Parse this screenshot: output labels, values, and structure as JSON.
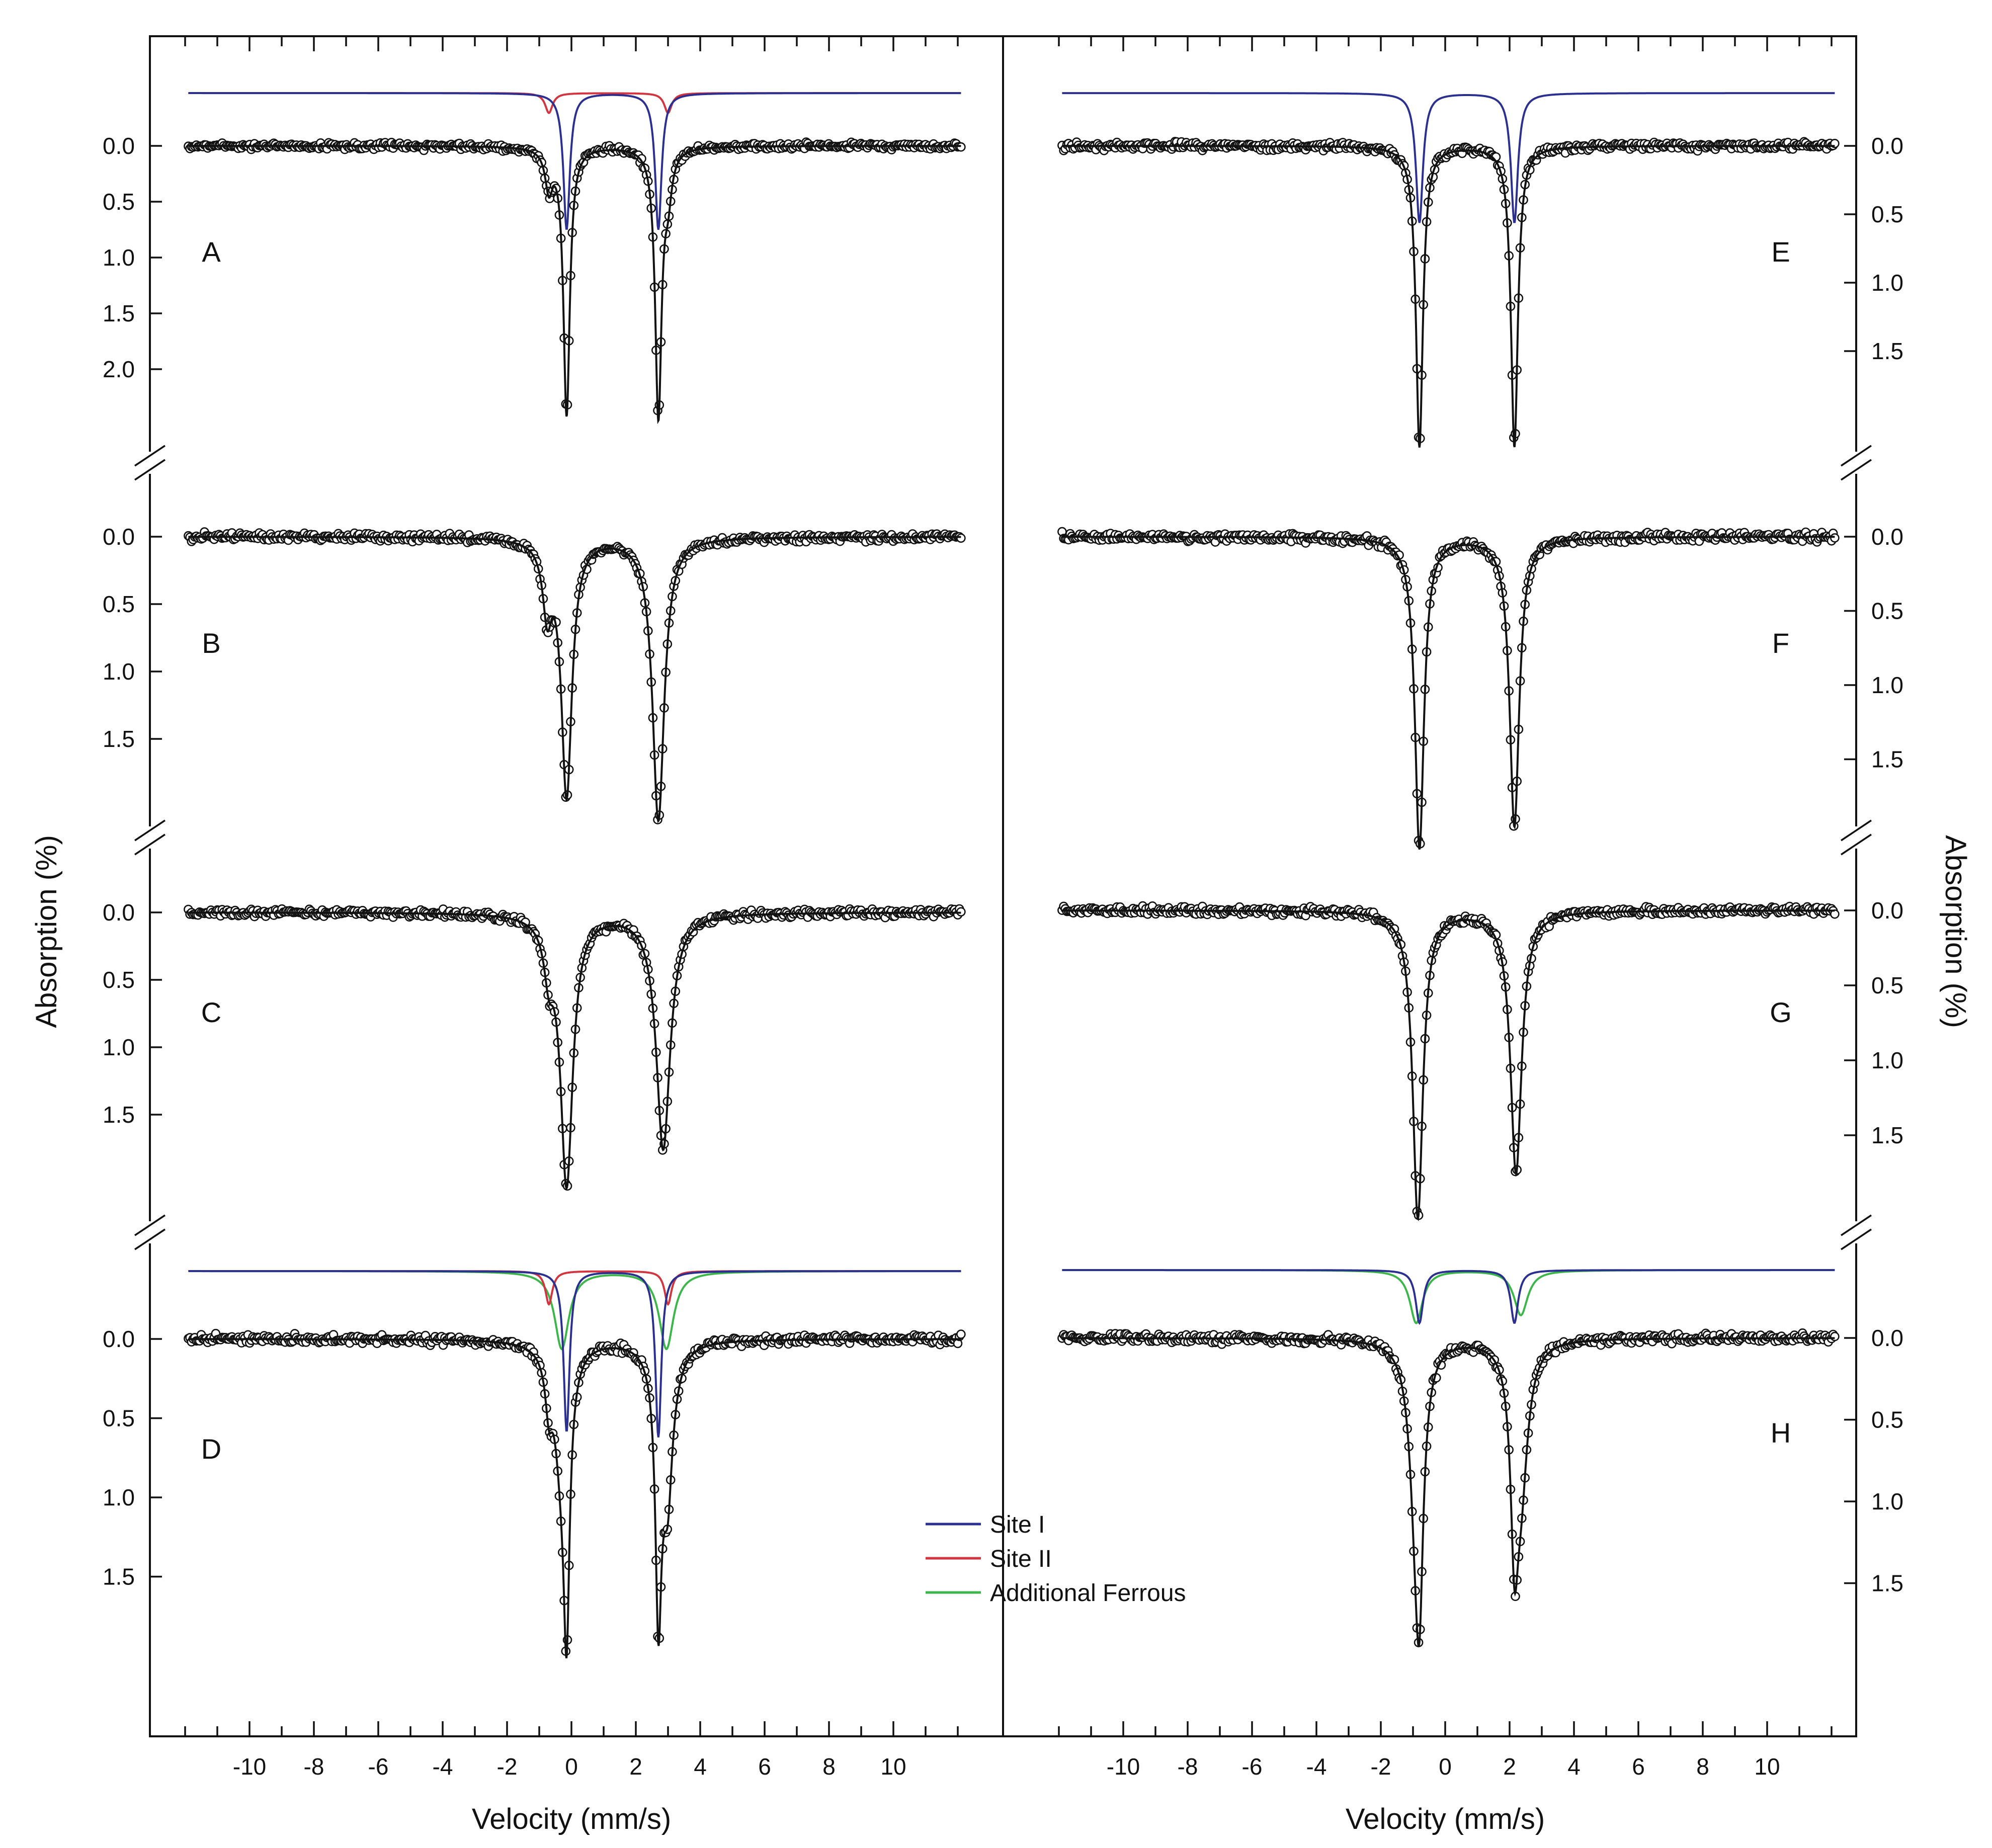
{
  "chart_data": {
    "type": "scatter",
    "xlabel": "Velocity (mm/s)",
    "ylabel": "Absorption (%)",
    "xlim": [
      -12,
      12
    ],
    "x_ticks": [
      -10,
      -8,
      -6,
      -4,
      -2,
      0,
      2,
      4,
      6,
      8,
      10
    ],
    "colors": {
      "site_I": "#2b2f8f",
      "site_II": "#d1353f",
      "additional_ferrous": "#3cb54a",
      "fit": "#111111",
      "data": "#111111"
    },
    "legend": {
      "position": "center",
      "entries": [
        {
          "label": "Site I",
          "color": "#2b2f8f"
        },
        {
          "label": "Site II",
          "color": "#d1353f"
        },
        {
          "label": "Additional Ferrous",
          "color": "#3cb54a"
        }
      ]
    },
    "panels": [
      {
        "id": "A",
        "label": "A",
        "column": "left",
        "ylim": [
          0,
          2.7
        ],
        "y_ticks": [
          "0.0",
          "0.5",
          "1.0",
          "1.5",
          "2.0"
        ],
        "components": [
          {
            "key": "site_I",
            "lines": [
              {
                "center": -0.15,
                "depth": 2.4,
                "hwhm": 0.12
              },
              {
                "center": 2.7,
                "depth": 2.4,
                "hwhm": 0.12
              }
            ]
          },
          {
            "key": "site_II",
            "lines": [
              {
                "center": -0.7,
                "depth": 0.35,
                "hwhm": 0.14
              },
              {
                "center": 3.0,
                "depth": 0.35,
                "hwhm": 0.14
              }
            ]
          }
        ]
      },
      {
        "id": "B",
        "label": "B",
        "column": "left",
        "ylim": [
          0,
          2.15
        ],
        "y_ticks": [
          "0.0",
          "0.5",
          "1.0",
          "1.5"
        ],
        "components": [
          {
            "key": "site_I",
            "lines": [
              {
                "center": -0.15,
                "depth": 1.9,
                "hwhm": 0.2
              },
              {
                "center": 2.7,
                "depth": 2.1,
                "hwhm": 0.22
              }
            ]
          },
          {
            "key": "site_II",
            "lines": [
              {
                "center": -0.75,
                "depth": 0.5,
                "hwhm": 0.17
              }
            ]
          }
        ]
      },
      {
        "id": "C",
        "label": "C",
        "column": "left",
        "ylim": [
          0,
          2.15
        ],
        "y_ticks": [
          "0.0",
          "0.5",
          "1.0",
          "1.5"
        ],
        "components": [
          {
            "key": "site_I",
            "lines": [
              {
                "center": -0.15,
                "depth": 2.0,
                "hwhm": 0.23
              },
              {
                "center": 2.85,
                "depth": 1.75,
                "hwhm": 0.26
              }
            ]
          },
          {
            "key": "site_II",
            "lines": [
              {
                "center": -0.7,
                "depth": 0.35,
                "hwhm": 0.18
              }
            ]
          }
        ]
      },
      {
        "id": "D",
        "label": "D",
        "column": "left",
        "ylim": [
          0,
          2.15
        ],
        "y_ticks": [
          "0.0",
          "0.5",
          "1.0",
          "1.5"
        ],
        "components": [
          {
            "key": "site_I",
            "lines": [
              {
                "center": -0.15,
                "depth": 1.45,
                "hwhm": 0.11
              },
              {
                "center": 2.7,
                "depth": 1.5,
                "hwhm": 0.11
              }
            ]
          },
          {
            "key": "site_II",
            "lines": [
              {
                "center": -0.7,
                "depth": 0.3,
                "hwhm": 0.13
              },
              {
                "center": 3.0,
                "depth": 0.3,
                "hwhm": 0.13
              }
            ]
          },
          {
            "key": "additional_ferrous",
            "lines": [
              {
                "center": -0.3,
                "depth": 0.7,
                "hwhm": 0.27
              },
              {
                "center": 2.95,
                "depth": 0.7,
                "hwhm": 0.27
              }
            ]
          }
        ]
      },
      {
        "id": "E",
        "label": "E",
        "column": "right",
        "ylim": [
          0,
          2.25
        ],
        "y_ticks": [
          "0.0",
          "0.5",
          "1.0",
          "1.5"
        ],
        "components": [
          {
            "key": "site_I",
            "lines": [
              {
                "center": -0.8,
                "depth": 2.2,
                "hwhm": 0.13
              },
              {
                "center": 2.15,
                "depth": 2.2,
                "hwhm": 0.13
              }
            ]
          }
        ]
      },
      {
        "id": "F",
        "label": "F",
        "column": "right",
        "ylim": [
          0,
          2.15
        ],
        "y_ticks": [
          "0.0",
          "0.5",
          "1.0",
          "1.5"
        ],
        "components": [
          {
            "key": "site_I",
            "lines": [
              {
                "center": -0.8,
                "depth": 2.1,
                "hwhm": 0.17
              },
              {
                "center": 2.15,
                "depth": 1.95,
                "hwhm": 0.18
              }
            ]
          }
        ]
      },
      {
        "id": "G",
        "label": "G",
        "column": "right",
        "ylim": [
          0,
          2.15
        ],
        "y_ticks": [
          "0.0",
          "0.5",
          "1.0",
          "1.5"
        ],
        "components": [
          {
            "key": "site_I",
            "lines": [
              {
                "center": -0.85,
                "depth": 2.05,
                "hwhm": 0.19
              },
              {
                "center": 2.2,
                "depth": 1.75,
                "hwhm": 0.21
              }
            ]
          }
        ]
      },
      {
        "id": "H",
        "label": "H",
        "column": "right",
        "ylim": [
          0,
          2.15
        ],
        "y_ticks": [
          "0.0",
          "0.5",
          "1.0",
          "1.5"
        ],
        "components": [
          {
            "key": "site_I",
            "lines": [
              {
                "center": -0.8,
                "depth": 1.0,
                "hwhm": 0.14
              },
              {
                "center": 2.15,
                "depth": 1.0,
                "hwhm": 0.14
              }
            ]
          },
          {
            "key": "additional_ferrous",
            "lines": [
              {
                "center": -0.9,
                "depth": 1.0,
                "hwhm": 0.24
              },
              {
                "center": 2.35,
                "depth": 0.85,
                "hwhm": 0.26
              }
            ]
          }
        ]
      }
    ]
  }
}
